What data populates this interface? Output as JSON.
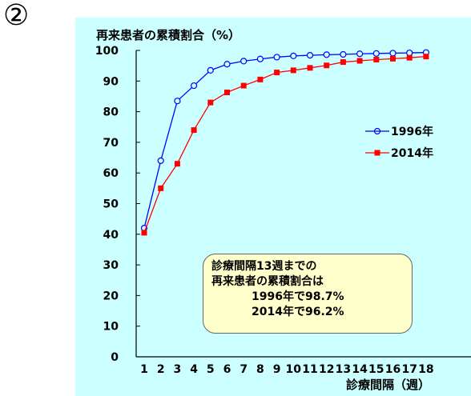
{
  "label": "②",
  "chart_data": {
    "type": "line",
    "ylabel": "再来患者の累積割合（%）",
    "xlabel": "診療間隔（週）",
    "x": [
      1,
      2,
      3,
      4,
      5,
      6,
      7,
      8,
      9,
      10,
      11,
      12,
      13,
      14,
      15,
      16,
      17,
      18
    ],
    "ylim": [
      0,
      100
    ],
    "yticks": [
      0,
      10,
      20,
      30,
      40,
      50,
      60,
      70,
      80,
      90,
      100
    ],
    "legend_position": "right",
    "grid": false,
    "series": [
      {
        "name": "1996年",
        "color": "#0000ff",
        "marker": "open-circle",
        "values": [
          42,
          64,
          83.5,
          88.5,
          93.5,
          95.5,
          96.5,
          97.2,
          97.8,
          98.2,
          98.4,
          98.6,
          98.7,
          98.9,
          99.0,
          99.1,
          99.2,
          99.3
        ]
      },
      {
        "name": "2014年",
        "color": "#ff0000",
        "marker": "filled-square",
        "values": [
          40.5,
          55,
          63,
          74,
          83,
          86.3,
          88.5,
          90.5,
          92.8,
          93.5,
          94.3,
          95.1,
          96.2,
          96.6,
          97.0,
          97.3,
          97.6,
          98.0
        ]
      }
    ],
    "annotation": {
      "line1": "診療間隔13週までの",
      "line2": "再来患者の累積割合は",
      "line3": "1996年で98.7%",
      "line4": "2014年で96.2%"
    }
  }
}
